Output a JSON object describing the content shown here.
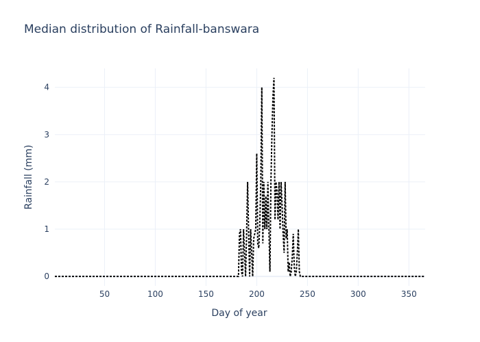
{
  "chart_data": {
    "type": "line",
    "title": "Median distribution of Rainfall-banswara",
    "xlabel": "Day of year",
    "ylabel": "Rainfall (mm)",
    "xlim": [
      1,
      366
    ],
    "ylim": [
      -0.2,
      4.4
    ],
    "x_ticks": [
      50,
      100,
      150,
      200,
      250,
      300,
      350
    ],
    "y_ticks": [
      0,
      1,
      2,
      3,
      4
    ],
    "grid": true,
    "legend": "none",
    "line_color": "#000000",
    "line_style": "dotted",
    "series": [
      {
        "x": [
          1,
          50,
          100,
          150,
          180,
          182,
          183,
          184,
          185,
          186,
          187,
          188,
          189,
          190,
          191,
          192,
          193,
          194,
          195,
          196,
          197,
          198,
          199,
          200,
          201,
          202,
          203,
          204,
          205,
          206,
          207,
          208,
          209,
          210,
          211,
          212,
          213,
          214,
          215,
          216,
          217,
          218,
          219,
          220,
          221,
          222,
          223,
          224,
          225,
          226,
          227,
          228,
          229,
          230,
          231,
          232,
          233,
          234,
          235,
          236,
          237,
          238,
          239,
          240,
          241,
          242,
          243,
          244,
          245,
          246,
          250,
          300,
          366
        ],
        "y": [
          0,
          0,
          0,
          0,
          0,
          0,
          0.9,
          1.0,
          0.1,
          0,
          1.0,
          0.5,
          0,
          0.9,
          2.0,
          0.9,
          0,
          1.0,
          0.5,
          0,
          0.8,
          0.9,
          1.0,
          2.6,
          0.7,
          0.6,
          1.1,
          2.0,
          4.0,
          0.7,
          2.0,
          1.0,
          1.7,
          1.0,
          2.0,
          1.0,
          0.1,
          2.0,
          3.0,
          3.8,
          4.2,
          1.2,
          2.0,
          1.8,
          1.2,
          2.0,
          1.0,
          2.0,
          1.5,
          0.9,
          0.5,
          2.0,
          0.8,
          1.0,
          0.1,
          0.3,
          0,
          0.1,
          0.4,
          0.9,
          0.2,
          0,
          0.1,
          0.5,
          1.0,
          0.1,
          0,
          0,
          0,
          0,
          0,
          0,
          0
        ]
      }
    ]
  }
}
